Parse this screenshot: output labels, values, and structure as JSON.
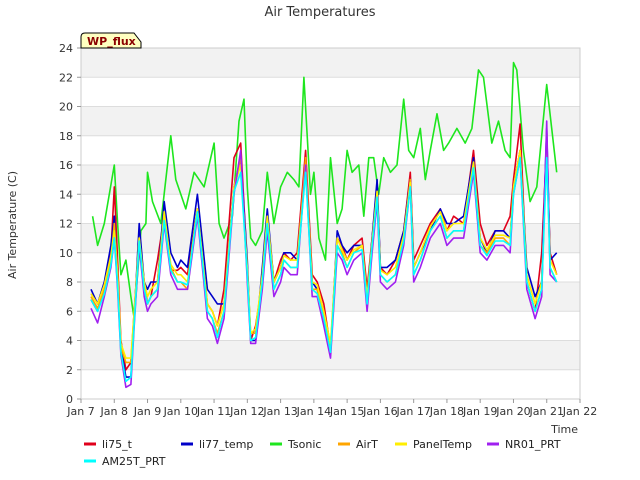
{
  "chart_data": {
    "type": "line",
    "title": "Air Temperatures",
    "xlabel": "Time",
    "ylabel": "Air Temperature (C)",
    "ylim": [
      0,
      24
    ],
    "yticks": [
      0,
      2,
      4,
      6,
      8,
      10,
      12,
      14,
      16,
      18,
      20,
      22,
      24
    ],
    "xlim": [
      7,
      22
    ],
    "xticks": [
      {
        "value": 7,
        "label": "Jan 7"
      },
      {
        "value": 8,
        "label": "Jan 8"
      },
      {
        "value": 9,
        "label": "Jan 9"
      },
      {
        "value": 10,
        "label": "Jan 10"
      },
      {
        "value": 11,
        "label": "Jan 11"
      },
      {
        "value": 12,
        "label": "Jan 12"
      },
      {
        "value": 13,
        "label": "Jan 13"
      },
      {
        "value": 14,
        "label": "Jan 14"
      },
      {
        "value": 15,
        "label": "Jan 15"
      },
      {
        "value": 16,
        "label": "Jan 16"
      },
      {
        "value": 17,
        "label": "Jan 17"
      },
      {
        "value": 18,
        "label": "Jan 18"
      },
      {
        "value": 19,
        "label": "Jan 19"
      },
      {
        "value": 20,
        "label": "Jan 20"
      },
      {
        "value": 21,
        "label": "Jan 21"
      },
      {
        "value": 22,
        "label": "Jan 22"
      }
    ],
    "grid": true,
    "legend_position": "bottom",
    "annotation": "WP_flux",
    "series": [
      {
        "name": "li75_t",
        "color": "#e0001b",
        "x": [
          7.3,
          7.5,
          7.7,
          7.9,
          8.0,
          8.1,
          8.2,
          8.35,
          8.5,
          8.6,
          8.75,
          8.9,
          9.0,
          9.1,
          9.3,
          9.5,
          9.7,
          9.9,
          10.0,
          10.2,
          10.5,
          10.8,
          10.95,
          11.1,
          11.3,
          11.6,
          11.8,
          12.0,
          12.1,
          12.25,
          12.45,
          12.6,
          12.8,
          13.0,
          13.1,
          13.3,
          13.5,
          13.75,
          13.95,
          14.1,
          14.3,
          14.5,
          14.7,
          14.85,
          15.0,
          15.2,
          15.45,
          15.6,
          15.75,
          15.9,
          16.0,
          16.2,
          16.45,
          16.7,
          16.9,
          17.0,
          17.2,
          17.5,
          17.8,
          18.0,
          18.2,
          18.5,
          18.8,
          19.0,
          19.2,
          19.45,
          19.7,
          19.9,
          20.0,
          20.2,
          20.4,
          20.65,
          20.85,
          21.0,
          21.1,
          21.3
        ],
        "y": [
          6.8,
          6.0,
          7.5,
          10.0,
          14.5,
          9.5,
          4.0,
          2.0,
          2.5,
          6.0,
          11.0,
          8.0,
          6.5,
          7.0,
          9.5,
          12.5,
          8.8,
          8.8,
          9.0,
          8.5,
          13.0,
          6.5,
          6.0,
          5.0,
          7.5,
          16.5,
          17.5,
          9.0,
          4.0,
          5.0,
          8.0,
          12.5,
          8.0,
          9.5,
          10.0,
          9.5,
          10.0,
          17.0,
          8.5,
          8.0,
          6.5,
          3.5,
          11.0,
          10.5,
          9.5,
          10.5,
          11.0,
          7.5,
          11.0,
          14.5,
          9.0,
          8.5,
          9.5,
          11.5,
          15.5,
          9.5,
          10.5,
          12.0,
          13.0,
          11.5,
          12.5,
          12.0,
          17.0,
          12.0,
          10.5,
          11.5,
          11.5,
          12.5,
          15.0,
          18.8,
          8.0,
          6.0,
          10.0,
          17.5,
          10.0,
          8.5
        ]
      },
      {
        "name": "li77_temp",
        "color": "#0000c8",
        "x": [
          7.3,
          7.5,
          7.7,
          7.9,
          8.0,
          8.1,
          8.2,
          8.35,
          8.5,
          8.6,
          8.75,
          8.9,
          9.0,
          9.1,
          9.3,
          9.5,
          9.7,
          9.9,
          10.0,
          10.2,
          10.5,
          10.8,
          10.95,
          11.1,
          11.3,
          11.6,
          11.8,
          12.0,
          12.1,
          12.25,
          12.45,
          12.6,
          12.8,
          13.0,
          13.1,
          13.3,
          13.5,
          13.75,
          13.95,
          14.1,
          14.3,
          14.5,
          14.7,
          14.85,
          15.0,
          15.2,
          15.45,
          15.6,
          15.75,
          15.9,
          16.0,
          16.2,
          16.45,
          16.7,
          16.9,
          17.0,
          17.2,
          17.5,
          17.8,
          18.0,
          18.2,
          18.5,
          18.8,
          19.0,
          19.2,
          19.45,
          19.7,
          19.9,
          20.0,
          20.2,
          20.4,
          20.65,
          20.85,
          21.0,
          21.1,
          21.3
        ],
        "y": [
          7.5,
          6.5,
          8.0,
          10.5,
          12.5,
          8.0,
          3.5,
          1.5,
          1.5,
          5.5,
          12.0,
          8.0,
          7.5,
          8.0,
          8.0,
          13.5,
          10.0,
          9.0,
          9.5,
          9.0,
          14.0,
          7.5,
          7.0,
          6.5,
          6.5,
          14.5,
          16.5,
          9.5,
          4.0,
          4.0,
          9.0,
          13.0,
          8.0,
          9.0,
          10.0,
          10.0,
          9.5,
          16.0,
          8.0,
          7.5,
          5.5,
          3.0,
          11.5,
          10.5,
          10.0,
          10.5,
          10.5,
          7.0,
          11.0,
          15.0,
          9.0,
          9.0,
          9.5,
          11.5,
          15.0,
          9.0,
          10.0,
          11.5,
          13.0,
          12.0,
          12.0,
          12.5,
          16.5,
          11.0,
          10.0,
          11.5,
          11.5,
          11.0,
          14.5,
          17.0,
          9.0,
          7.0,
          8.0,
          18.5,
          9.5,
          10.0
        ]
      },
      {
        "name": "Tsonic",
        "color": "#1ee61e",
        "x": [
          7.35,
          7.5,
          7.7,
          7.85,
          8.0,
          8.1,
          8.2,
          8.35,
          8.5,
          8.6,
          8.8,
          8.95,
          9.0,
          9.15,
          9.4,
          9.7,
          9.85,
          10.0,
          10.15,
          10.4,
          10.7,
          11.0,
          11.15,
          11.3,
          11.55,
          11.75,
          11.9,
          12.0,
          12.1,
          12.25,
          12.45,
          12.6,
          12.8,
          13.0,
          13.2,
          13.4,
          13.55,
          13.7,
          13.9,
          14.0,
          14.15,
          14.35,
          14.5,
          14.7,
          14.85,
          15.0,
          15.15,
          15.35,
          15.5,
          15.65,
          15.8,
          15.95,
          16.1,
          16.3,
          16.5,
          16.7,
          16.85,
          17.0,
          17.2,
          17.35,
          17.5,
          17.7,
          17.9,
          18.05,
          18.3,
          18.55,
          18.75,
          18.95,
          19.1,
          19.35,
          19.55,
          19.75,
          19.9,
          20.0,
          20.1,
          20.3,
          20.5,
          20.7,
          20.85,
          21.0,
          21.15,
          21.3
        ],
        "y": [
          12.5,
          10.5,
          12.0,
          14.0,
          16.0,
          12.0,
          8.5,
          9.5,
          7.0,
          5.5,
          11.5,
          12.0,
          15.5,
          13.5,
          12.0,
          18.0,
          15.0,
          14.0,
          13.0,
          15.5,
          14.5,
          17.5,
          12.0,
          11.0,
          12.5,
          19.0,
          20.5,
          14.5,
          11.0,
          10.5,
          11.5,
          15.5,
          12.0,
          14.5,
          15.5,
          15.0,
          14.5,
          22.0,
          14.0,
          15.5,
          11.0,
          9.5,
          16.5,
          12.0,
          13.0,
          17.0,
          15.5,
          16.0,
          12.5,
          16.5,
          16.5,
          14.0,
          16.5,
          15.5,
          16.0,
          20.5,
          17.0,
          16.5,
          18.5,
          15.0,
          17.0,
          19.5,
          17.0,
          17.5,
          18.5,
          17.5,
          18.5,
          22.5,
          22.0,
          17.5,
          19.0,
          17.0,
          16.5,
          23.0,
          22.5,
          17.0,
          13.5,
          14.5,
          18.0,
          21.5,
          18.5,
          15.5
        ]
      },
      {
        "name": "AirT",
        "color": "#ffa500",
        "x": [
          7.3,
          7.5,
          7.7,
          7.9,
          8.0,
          8.1,
          8.2,
          8.35,
          8.5,
          8.6,
          8.75,
          8.9,
          9.0,
          9.1,
          9.3,
          9.5,
          9.7,
          9.9,
          10.0,
          10.2,
          10.5,
          10.8,
          10.95,
          11.1,
          11.3,
          11.6,
          11.8,
          12.0,
          12.1,
          12.25,
          12.45,
          12.6,
          12.8,
          13.0,
          13.1,
          13.3,
          13.5,
          13.75,
          13.95,
          14.1,
          14.3,
          14.5,
          14.7,
          14.85,
          15.0,
          15.2,
          15.45,
          15.6,
          15.75,
          15.9,
          16.0,
          16.2,
          16.45,
          16.7,
          16.9,
          17.0,
          17.2,
          17.5,
          17.8,
          18.0,
          18.2,
          18.5,
          18.8,
          19.0,
          19.2,
          19.45,
          19.7,
          19.9,
          20.0,
          20.2,
          20.4,
          20.65,
          20.85,
          21.0,
          21.1,
          21.3
        ],
        "y": [
          7.0,
          6.2,
          7.5,
          9.5,
          12.0,
          8.5,
          3.5,
          2.5,
          2.5,
          5.5,
          11.0,
          7.5,
          6.5,
          7.0,
          7.5,
          12.5,
          9.0,
          8.0,
          8.0,
          7.5,
          13.0,
          6.0,
          5.5,
          4.5,
          6.0,
          14.5,
          16.5,
          8.5,
          4.5,
          4.5,
          8.0,
          12.0,
          7.5,
          8.5,
          9.5,
          9.0,
          9.0,
          16.5,
          7.5,
          7.5,
          5.5,
          3.5,
          10.5,
          10.0,
          9.0,
          10.0,
          10.5,
          6.5,
          10.5,
          14.0,
          8.5,
          8.0,
          8.5,
          11.0,
          15.0,
          8.5,
          9.5,
          11.5,
          12.5,
          11.0,
          11.5,
          11.5,
          16.0,
          10.5,
          10.0,
          11.0,
          11.0,
          10.5,
          14.5,
          17.0,
          8.0,
          6.0,
          7.5,
          17.5,
          9.0,
          8.0
        ]
      },
      {
        "name": "PanelTemp",
        "color": "#ffee00",
        "x": [
          7.3,
          7.5,
          7.7,
          7.9,
          8.0,
          8.1,
          8.2,
          8.35,
          8.5,
          8.6,
          8.75,
          8.9,
          9.0,
          9.1,
          9.3,
          9.5,
          9.7,
          9.9,
          10.0,
          10.2,
          10.5,
          10.8,
          10.95,
          11.1,
          11.3,
          11.6,
          11.8,
          12.0,
          12.1,
          12.25,
          12.45,
          12.6,
          12.8,
          13.0,
          13.1,
          13.3,
          13.5,
          13.75,
          13.95,
          14.1,
          14.3,
          14.5,
          14.7,
          14.85,
          15.0,
          15.2,
          15.45,
          15.6,
          15.75,
          15.9,
          16.0,
          16.2,
          16.45,
          16.7,
          16.9,
          17.0,
          17.2,
          17.5,
          17.8,
          18.0,
          18.2,
          18.5,
          18.8,
          19.0,
          19.2,
          19.45,
          19.7,
          19.9,
          20.0,
          20.2,
          20.4,
          20.65,
          20.85,
          21.0,
          21.1,
          21.3
        ],
        "y": [
          7.2,
          6.5,
          7.8,
          9.8,
          11.5,
          8.5,
          3.8,
          2.8,
          2.8,
          6.0,
          11.0,
          8.0,
          7.0,
          7.5,
          8.0,
          12.8,
          9.2,
          8.5,
          8.5,
          8.0,
          13.0,
          6.5,
          6.0,
          5.0,
          6.5,
          14.5,
          16.0,
          9.0,
          4.5,
          4.8,
          8.5,
          12.5,
          8.0,
          9.0,
          9.8,
          9.5,
          9.5,
          16.0,
          8.0,
          7.8,
          6.0,
          3.8,
          11.0,
          10.2,
          9.5,
          10.2,
          10.5,
          7.0,
          10.8,
          14.2,
          8.8,
          8.5,
          9.0,
          11.2,
          14.8,
          9.0,
          10.0,
          11.8,
          12.8,
          11.5,
          12.0,
          12.0,
          16.2,
          11.0,
          10.2,
          11.2,
          11.2,
          11.0,
          14.5,
          17.0,
          8.5,
          6.5,
          8.0,
          17.0,
          9.5,
          8.5
        ]
      },
      {
        "name": "NR01_PRT",
        "color": "#a020f0",
        "x": [
          7.3,
          7.5,
          7.7,
          7.9,
          8.0,
          8.1,
          8.2,
          8.35,
          8.5,
          8.6,
          8.75,
          8.9,
          9.0,
          9.1,
          9.3,
          9.5,
          9.7,
          9.9,
          10.0,
          10.2,
          10.5,
          10.8,
          10.95,
          11.1,
          11.3,
          11.6,
          11.8,
          12.0,
          12.1,
          12.25,
          12.45,
          12.6,
          12.8,
          13.0,
          13.1,
          13.3,
          13.5,
          13.75,
          13.95,
          14.1,
          14.3,
          14.5,
          14.7,
          14.85,
          15.0,
          15.2,
          15.45,
          15.6,
          15.75,
          15.9,
          16.0,
          16.2,
          16.45,
          16.7,
          16.9,
          17.0,
          17.2,
          17.5,
          17.8,
          18.0,
          18.2,
          18.5,
          18.8,
          19.0,
          19.2,
          19.45,
          19.7,
          19.9,
          20.0,
          20.2,
          20.4,
          20.65,
          20.85,
          21.0,
          21.1,
          21.3
        ],
        "y": [
          6.2,
          5.2,
          7.0,
          9.0,
          11.0,
          7.5,
          3.0,
          0.8,
          1.0,
          5.0,
          10.5,
          7.0,
          6.0,
          6.5,
          7.0,
          12.0,
          8.5,
          7.5,
          7.5,
          7.5,
          12.5,
          5.5,
          5.0,
          3.8,
          5.5,
          14.0,
          17.0,
          8.0,
          3.8,
          3.8,
          7.5,
          11.5,
          7.0,
          8.0,
          9.0,
          8.5,
          8.5,
          16.0,
          7.0,
          7.0,
          5.0,
          2.8,
          10.0,
          9.5,
          8.5,
          9.5,
          10.0,
          6.0,
          10.0,
          13.5,
          8.0,
          7.5,
          8.0,
          10.5,
          14.5,
          8.0,
          9.0,
          11.0,
          12.0,
          10.5,
          11.0,
          11.0,
          15.5,
          10.0,
          9.5,
          10.5,
          10.5,
          10.0,
          14.0,
          16.5,
          7.5,
          5.5,
          7.0,
          19.0,
          8.5,
          8.0
        ]
      },
      {
        "name": "AM25T_PRT",
        "color": "#00ffff",
        "x": [
          7.3,
          7.5,
          7.7,
          7.9,
          8.0,
          8.1,
          8.2,
          8.35,
          8.5,
          8.6,
          8.75,
          8.9,
          9.0,
          9.1,
          9.3,
          9.5,
          9.7,
          9.9,
          10.0,
          10.2,
          10.5,
          10.8,
          10.95,
          11.1,
          11.3,
          11.6,
          11.8,
          12.0,
          12.1,
          12.25,
          12.45,
          12.6,
          12.8,
          13.0,
          13.1,
          13.3,
          13.5,
          13.75,
          13.95,
          14.1,
          14.3,
          14.5,
          14.7,
          14.85,
          15.0,
          15.2,
          15.45,
          15.6,
          15.75,
          15.9,
          16.0,
          16.2,
          16.45,
          16.7,
          16.9,
          17.0,
          17.2,
          17.5,
          17.8,
          18.0,
          18.2,
          18.5,
          18.8,
          19.0,
          19.2,
          19.45,
          19.7,
          19.9,
          20.0,
          20.2,
          20.4,
          20.65,
          20.85,
          21.0,
          21.1,
          21.3
        ],
        "y": [
          6.8,
          6.0,
          7.2,
          9.2,
          11.0,
          7.8,
          3.2,
          1.2,
          1.5,
          5.2,
          10.8,
          7.5,
          6.5,
          7.0,
          7.5,
          12.2,
          8.8,
          8.0,
          8.0,
          7.8,
          12.8,
          6.0,
          5.5,
          4.2,
          6.0,
          14.2,
          15.5,
          8.5,
          4.0,
          4.2,
          8.0,
          12.0,
          7.5,
          8.5,
          9.5,
          9.0,
          9.0,
          15.5,
          7.5,
          7.2,
          5.5,
          3.2,
          10.5,
          9.8,
          9.0,
          10.0,
          10.2,
          6.5,
          10.5,
          13.8,
          8.5,
          8.0,
          8.5,
          10.8,
          14.5,
          8.5,
          9.5,
          11.5,
          12.5,
          11.0,
          11.5,
          11.5,
          15.8,
          10.5,
          9.8,
          10.8,
          10.8,
          10.5,
          14.0,
          16.5,
          8.0,
          6.0,
          7.5,
          16.5,
          9.0,
          8.0
        ]
      }
    ]
  }
}
